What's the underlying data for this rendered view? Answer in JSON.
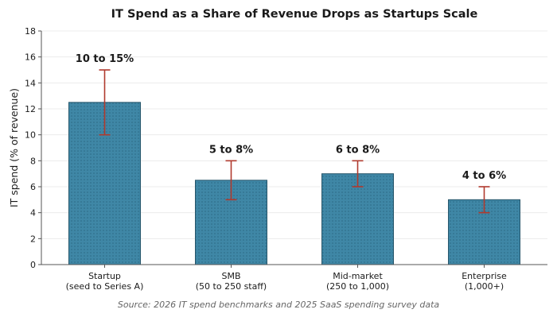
{
  "chart_data": {
    "type": "bar",
    "title": "IT Spend as a Share of Revenue Drops as Startups Scale",
    "xlabel": "",
    "ylabel": "IT spend (% of revenue)",
    "ylim": [
      0,
      18
    ],
    "yticks": [
      0,
      2,
      4,
      6,
      8,
      10,
      12,
      14,
      16,
      18
    ],
    "grid": true,
    "categories": [
      [
        "Startup",
        "(seed to Series A)"
      ],
      [
        "SMB",
        "(50 to 250 staff)"
      ],
      [
        "Mid-market",
        "(250 to 1,000)"
      ],
      [
        "Enterprise",
        "(1,000+)"
      ]
    ],
    "values": [
      12.5,
      6.5,
      7,
      5
    ],
    "error_low": [
      10,
      5,
      6,
      4
    ],
    "error_high": [
      15,
      8,
      8,
      6
    ],
    "data_labels": [
      "10 to 15%",
      "5 to 8%",
      "6 to 8%",
      "4 to 6%"
    ],
    "source": "Source: 2026 IT spend benchmarks and 2025 SaaS spending survey data",
    "colors": {
      "bar_fill": "#3f87a6",
      "bar_stroke": "#27566b",
      "bar_dots": "#2c6a85",
      "error_bar": "#b03a2e",
      "grid": "#ececec",
      "axis": "#555555",
      "text": "#1a1a1a",
      "source_text": "#666666"
    }
  }
}
